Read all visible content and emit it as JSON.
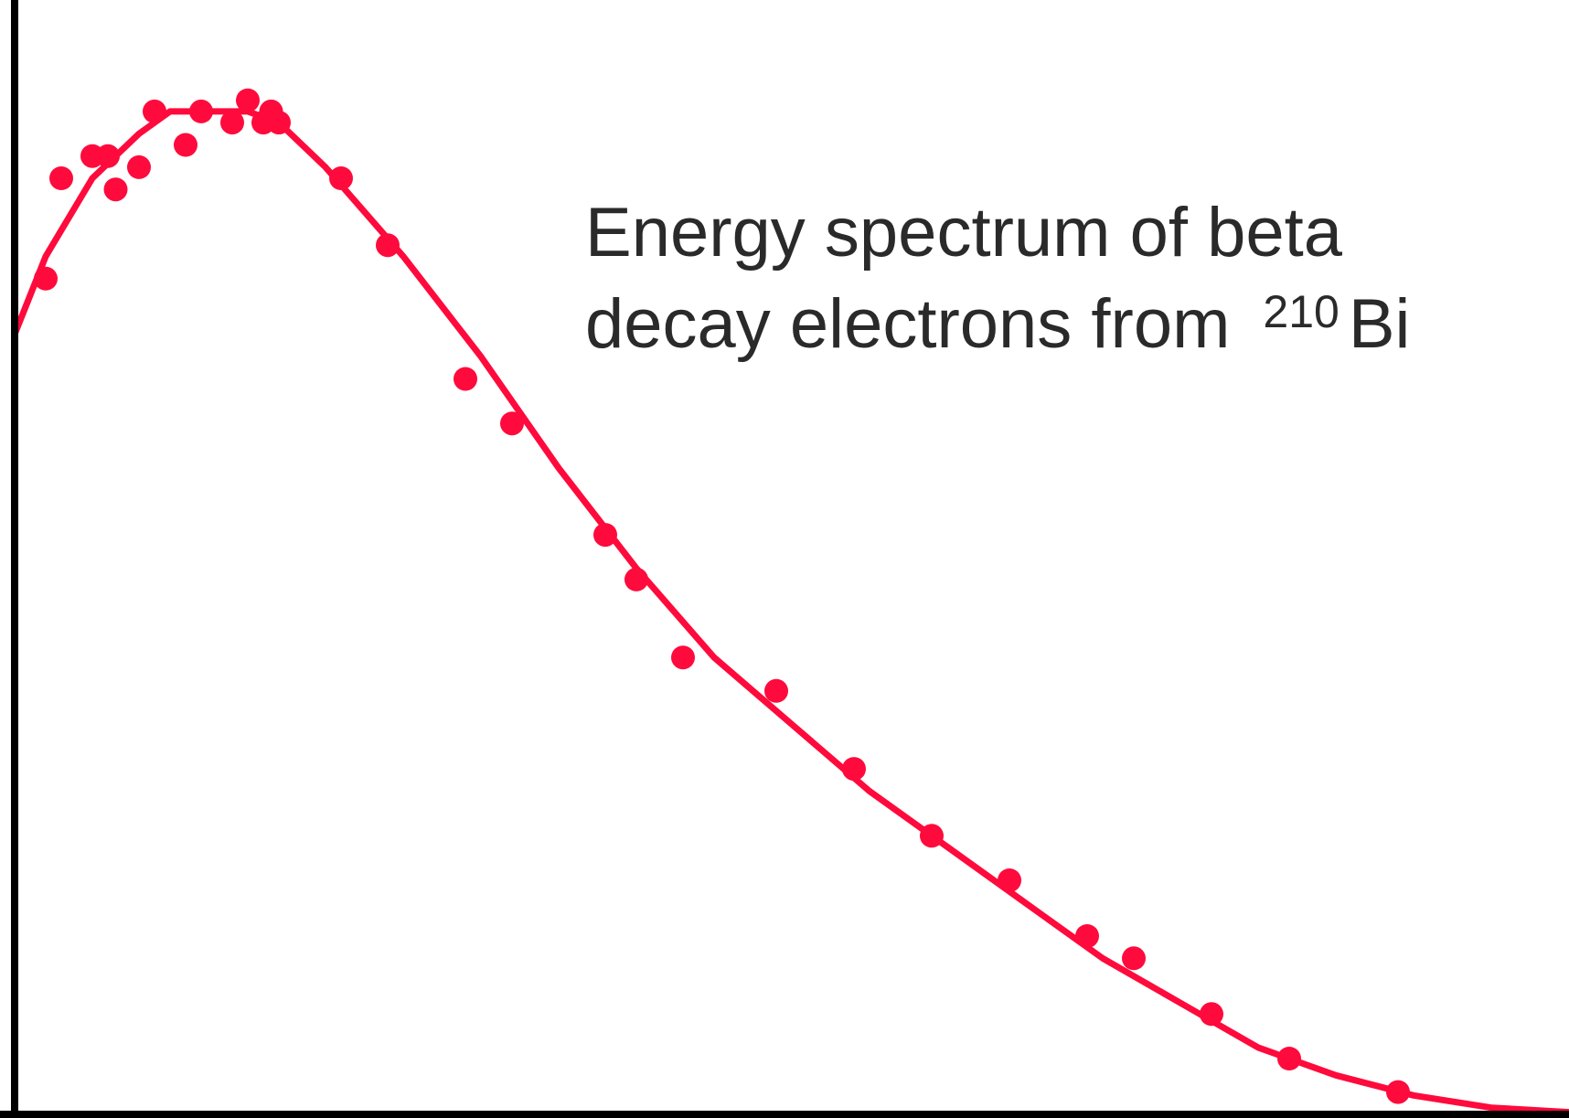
{
  "chart_data": {
    "type": "scatter",
    "title": "",
    "xlabel": "",
    "ylabel": "",
    "annotation": {
      "line1": "Energy spectrum of beta",
      "line2_prefix": "decay electrons from",
      "isotope_mass": "210",
      "element": "Bi"
    },
    "xlim": [
      0,
      1.0
    ],
    "ylim": [
      0,
      1.0
    ],
    "grid": false,
    "colors": {
      "data": "#ff0a3c",
      "axis": "#000000",
      "text": "#2a2a2a"
    },
    "series": [
      {
        "points": [
          [
            0.02,
            0.75
          ],
          [
            0.03,
            0.84
          ],
          [
            0.05,
            0.86
          ],
          [
            0.06,
            0.86
          ],
          [
            0.065,
            0.83
          ],
          [
            0.08,
            0.85
          ],
          [
            0.09,
            0.9
          ],
          [
            0.11,
            0.87
          ],
          [
            0.12,
            0.9
          ],
          [
            0.14,
            0.89
          ],
          [
            0.15,
            0.91
          ],
          [
            0.16,
            0.89
          ],
          [
            0.165,
            0.9
          ],
          [
            0.17,
            0.89
          ],
          [
            0.21,
            0.84
          ],
          [
            0.24,
            0.78
          ],
          [
            0.29,
            0.66
          ],
          [
            0.32,
            0.62
          ],
          [
            0.38,
            0.52
          ],
          [
            0.4,
            0.48
          ],
          [
            0.43,
            0.41
          ],
          [
            0.49,
            0.38
          ],
          [
            0.54,
            0.31
          ],
          [
            0.59,
            0.25
          ],
          [
            0.64,
            0.21
          ],
          [
            0.69,
            0.16
          ],
          [
            0.72,
            0.14
          ],
          [
            0.77,
            0.09
          ],
          [
            0.82,
            0.05
          ],
          [
            0.89,
            0.02
          ]
        ]
      },
      {
        "curve": [
          [
            0.0,
            0.7
          ],
          [
            0.02,
            0.77
          ],
          [
            0.05,
            0.84
          ],
          [
            0.08,
            0.88
          ],
          [
            0.1,
            0.9
          ],
          [
            0.15,
            0.9
          ],
          [
            0.17,
            0.89
          ],
          [
            0.2,
            0.85
          ],
          [
            0.25,
            0.77
          ],
          [
            0.3,
            0.68
          ],
          [
            0.35,
            0.58
          ],
          [
            0.4,
            0.49
          ],
          [
            0.45,
            0.41
          ],
          [
            0.5,
            0.35
          ],
          [
            0.55,
            0.29
          ],
          [
            0.6,
            0.24
          ],
          [
            0.65,
            0.19
          ],
          [
            0.7,
            0.14
          ],
          [
            0.75,
            0.1
          ],
          [
            0.8,
            0.06
          ],
          [
            0.85,
            0.035
          ],
          [
            0.9,
            0.017
          ],
          [
            0.95,
            0.006
          ],
          [
            1.0,
            0.002
          ]
        ]
      }
    ]
  }
}
